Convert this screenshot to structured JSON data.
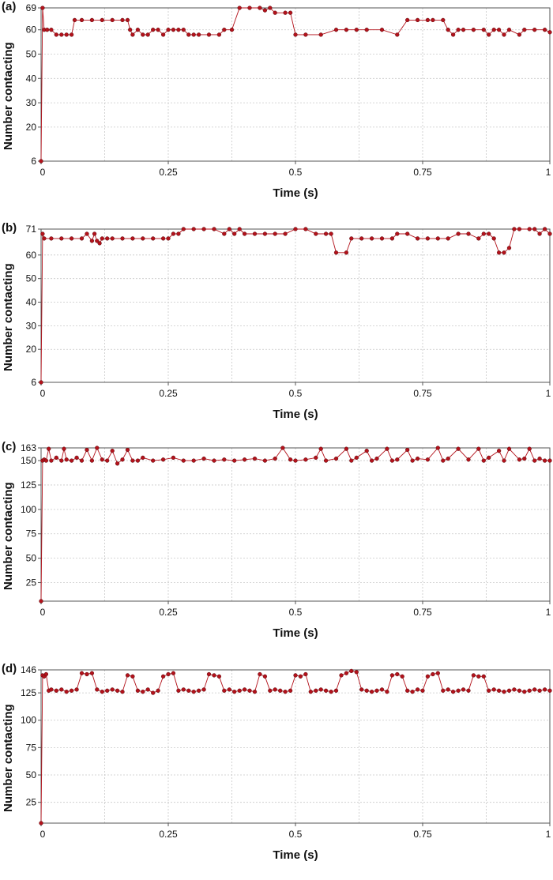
{
  "colors": {
    "series": "#b3121b",
    "marker_edge": "#5a0a0e",
    "grid": "#c8c8c8",
    "frame": "#555555"
  },
  "chart_data": [
    {
      "panel_label": "(a)",
      "type": "scatter",
      "xlabel": "Time (s)",
      "ylabel": "Number contacting",
      "xlim": [
        0,
        1
      ],
      "ylim": [
        6,
        69
      ],
      "x_ticks": [
        0,
        0.25,
        0.5,
        0.75,
        1
      ],
      "x_tick_labels": [
        "0",
        "0.25",
        "0.5",
        "0.75",
        "1"
      ],
      "y_ticks": [
        6,
        20,
        30,
        40,
        50,
        60,
        69
      ],
      "y_tick_labels": [
        "6",
        "20",
        "30",
        "40",
        "50",
        "60",
        "69"
      ],
      "grid": true,
      "series": [
        {
          "line_connected": true,
          "x": [
            0.0,
            0.003,
            0.006,
            0.012,
            0.02,
            0.03,
            0.04,
            0.05,
            0.06,
            0.066,
            0.08,
            0.1,
            0.12,
            0.14,
            0.16,
            0.17,
            0.175,
            0.18,
            0.19,
            0.2,
            0.21,
            0.22,
            0.23,
            0.24,
            0.25,
            0.26,
            0.27,
            0.28,
            0.29,
            0.3,
            0.31,
            0.33,
            0.35,
            0.36,
            0.375,
            0.39,
            0.41,
            0.43,
            0.44,
            0.45,
            0.46,
            0.48,
            0.49,
            0.5,
            0.52,
            0.55,
            0.58,
            0.6,
            0.62,
            0.64,
            0.67,
            0.7,
            0.72,
            0.74,
            0.76,
            0.77,
            0.79,
            0.8,
            0.81,
            0.82,
            0.83,
            0.85,
            0.87,
            0.88,
            0.89,
            0.9,
            0.91,
            0.92,
            0.94,
            0.95,
            0.97,
            0.99,
            1.0
          ],
          "y": [
            6,
            69,
            60,
            60,
            60,
            58,
            58,
            58,
            58,
            64,
            64,
            64,
            64,
            64,
            64,
            64,
            60,
            58,
            60,
            58,
            58,
            60,
            60,
            58,
            60,
            60,
            60,
            60,
            58,
            58,
            58,
            58,
            58,
            60,
            60,
            69,
            69,
            69,
            68,
            69,
            67,
            67,
            67,
            58,
            58,
            58,
            60,
            60,
            60,
            60,
            60,
            58,
            64,
            64,
            64,
            64,
            64,
            60,
            58,
            60,
            60,
            60,
            60,
            58,
            60,
            60,
            58,
            60,
            58,
            60,
            60,
            60,
            59
          ]
        }
      ]
    },
    {
      "panel_label": "(b)",
      "type": "scatter",
      "xlabel": "Time (s)",
      "ylabel": "Number contacting",
      "xlim": [
        0,
        1
      ],
      "ylim": [
        6,
        71
      ],
      "x_ticks": [
        0,
        0.25,
        0.5,
        0.75,
        1
      ],
      "x_tick_labels": [
        "0",
        "0.25",
        "0.5",
        "0.75",
        "1"
      ],
      "y_ticks": [
        6,
        20,
        30,
        40,
        50,
        60,
        71
      ],
      "y_tick_labels": [
        "6",
        "20",
        "30",
        "40",
        "50",
        "60",
        "71"
      ],
      "grid": true,
      "series": [
        {
          "line_connected": true,
          "x": [
            0.0,
            0.003,
            0.006,
            0.02,
            0.04,
            0.06,
            0.08,
            0.09,
            0.1,
            0.105,
            0.11,
            0.115,
            0.12,
            0.13,
            0.14,
            0.16,
            0.18,
            0.2,
            0.22,
            0.24,
            0.25,
            0.26,
            0.27,
            0.28,
            0.3,
            0.32,
            0.34,
            0.36,
            0.37,
            0.38,
            0.39,
            0.4,
            0.42,
            0.44,
            0.46,
            0.48,
            0.5,
            0.52,
            0.54,
            0.56,
            0.57,
            0.58,
            0.6,
            0.61,
            0.63,
            0.65,
            0.67,
            0.69,
            0.7,
            0.72,
            0.74,
            0.76,
            0.78,
            0.8,
            0.82,
            0.84,
            0.86,
            0.87,
            0.88,
            0.89,
            0.9,
            0.91,
            0.92,
            0.93,
            0.94,
            0.96,
            0.97,
            0.98,
            0.99,
            1.0
          ],
          "y": [
            6,
            69,
            67,
            67,
            67,
            67,
            67,
            69,
            66,
            69,
            66,
            65,
            67,
            67,
            67,
            67,
            67,
            67,
            67,
            67,
            67,
            69,
            69,
            71,
            71,
            71,
            71,
            69,
            71,
            69,
            71,
            69,
            69,
            69,
            69,
            69,
            71,
            71,
            69,
            69,
            69,
            61,
            61,
            67,
            67,
            67,
            67,
            67,
            69,
            69,
            67,
            67,
            67,
            67,
            69,
            69,
            67,
            69,
            69,
            67,
            61,
            61,
            63,
            71,
            71,
            71,
            71,
            69,
            71,
            69
          ]
        }
      ]
    },
    {
      "panel_label": "(c)",
      "type": "scatter",
      "xlabel": "Time (s)",
      "ylabel": "Number contacting",
      "xlim": [
        0,
        1
      ],
      "ylim": [
        6,
        163
      ],
      "x_ticks": [
        0,
        0.25,
        0.5,
        0.75,
        1
      ],
      "x_tick_labels": [
        "0",
        "0.25",
        "0.5",
        "0.75",
        "1"
      ],
      "y_ticks": [
        25,
        50,
        75,
        100,
        125,
        150,
        163
      ],
      "y_tick_labels": [
        "25",
        "50",
        "75",
        "100",
        "125",
        "150",
        "163"
      ],
      "grid": true,
      "series": [
        {
          "line_connected": true,
          "x": [
            0.0,
            0.003,
            0.006,
            0.01,
            0.015,
            0.02,
            0.03,
            0.04,
            0.045,
            0.05,
            0.06,
            0.07,
            0.08,
            0.09,
            0.1,
            0.11,
            0.12,
            0.13,
            0.14,
            0.15,
            0.16,
            0.17,
            0.18,
            0.19,
            0.2,
            0.22,
            0.24,
            0.26,
            0.28,
            0.3,
            0.32,
            0.34,
            0.36,
            0.38,
            0.4,
            0.42,
            0.44,
            0.46,
            0.475,
            0.49,
            0.5,
            0.52,
            0.54,
            0.55,
            0.56,
            0.58,
            0.6,
            0.61,
            0.62,
            0.64,
            0.65,
            0.66,
            0.68,
            0.69,
            0.7,
            0.72,
            0.73,
            0.74,
            0.76,
            0.78,
            0.79,
            0.8,
            0.82,
            0.84,
            0.86,
            0.87,
            0.88,
            0.9,
            0.91,
            0.92,
            0.94,
            0.95,
            0.96,
            0.97,
            0.98,
            0.99,
            1.0
          ],
          "y": [
            6,
            150,
            151,
            150,
            162,
            150,
            153,
            150,
            162,
            151,
            150,
            153,
            150,
            161,
            150,
            163,
            151,
            150,
            160,
            147,
            151,
            161,
            150,
            150,
            153,
            150,
            151,
            153,
            150,
            150,
            152,
            150,
            151,
            150,
            151,
            152,
            150,
            152,
            163,
            151,
            150,
            151,
            153,
            162,
            150,
            152,
            162,
            150,
            153,
            160,
            150,
            152,
            162,
            150,
            151,
            161,
            150,
            152,
            151,
            163,
            150,
            152,
            162,
            151,
            162,
            150,
            153,
            160,
            150,
            162,
            151,
            152,
            162,
            150,
            152,
            150,
            150
          ]
        }
      ]
    },
    {
      "panel_label": "(d)",
      "type": "scatter",
      "xlabel": "Time (s)",
      "ylabel": "Number contacting",
      "xlim": [
        0,
        1
      ],
      "ylim": [
        6,
        146
      ],
      "x_ticks": [
        0,
        0.25,
        0.5,
        0.75,
        1
      ],
      "x_tick_labels": [
        "0",
        "0.25",
        "0.5",
        "0.75",
        "1"
      ],
      "y_ticks": [
        25,
        50,
        75,
        100,
        125,
        146
      ],
      "y_tick_labels": [
        "25",
        "50",
        "75",
        "100",
        "125",
        "146"
      ],
      "grid": true,
      "series": [
        {
          "line_connected": true,
          "x": [
            0.0,
            0.003,
            0.006,
            0.01,
            0.015,
            0.02,
            0.03,
            0.04,
            0.05,
            0.06,
            0.07,
            0.08,
            0.09,
            0.1,
            0.11,
            0.12,
            0.13,
            0.14,
            0.15,
            0.16,
            0.17,
            0.18,
            0.19,
            0.2,
            0.21,
            0.22,
            0.23,
            0.24,
            0.25,
            0.26,
            0.27,
            0.28,
            0.29,
            0.3,
            0.31,
            0.32,
            0.33,
            0.34,
            0.35,
            0.36,
            0.37,
            0.38,
            0.39,
            0.4,
            0.41,
            0.42,
            0.43,
            0.44,
            0.45,
            0.46,
            0.47,
            0.48,
            0.49,
            0.5,
            0.51,
            0.52,
            0.53,
            0.54,
            0.55,
            0.56,
            0.57,
            0.58,
            0.59,
            0.6,
            0.61,
            0.62,
            0.63,
            0.64,
            0.65,
            0.66,
            0.67,
            0.68,
            0.69,
            0.7,
            0.71,
            0.72,
            0.73,
            0.74,
            0.75,
            0.76,
            0.77,
            0.78,
            0.79,
            0.8,
            0.81,
            0.82,
            0.83,
            0.84,
            0.85,
            0.86,
            0.87,
            0.88,
            0.89,
            0.9,
            0.91,
            0.92,
            0.93,
            0.94,
            0.95,
            0.96,
            0.97,
            0.98,
            0.99,
            1.0
          ],
          "y": [
            6,
            141,
            140,
            142,
            127,
            128,
            127,
            128,
            126,
            127,
            128,
            143,
            142,
            143,
            128,
            126,
            127,
            128,
            127,
            126,
            141,
            140,
            127,
            126,
            128,
            125,
            127,
            140,
            142,
            143,
            127,
            128,
            127,
            126,
            127,
            128,
            142,
            141,
            140,
            127,
            128,
            126,
            127,
            128,
            127,
            126,
            142,
            140,
            127,
            128,
            127,
            126,
            127,
            141,
            140,
            142,
            126,
            127,
            128,
            127,
            126,
            127,
            141,
            143,
            145,
            144,
            128,
            127,
            126,
            127,
            128,
            126,
            141,
            142,
            140,
            127,
            126,
            128,
            127,
            140,
            142,
            143,
            127,
            128,
            126,
            127,
            128,
            127,
            141,
            140,
            140,
            127,
            128,
            127,
            126,
            127,
            128,
            127,
            126,
            127,
            128,
            127,
            128,
            127
          ]
        }
      ]
    }
  ]
}
